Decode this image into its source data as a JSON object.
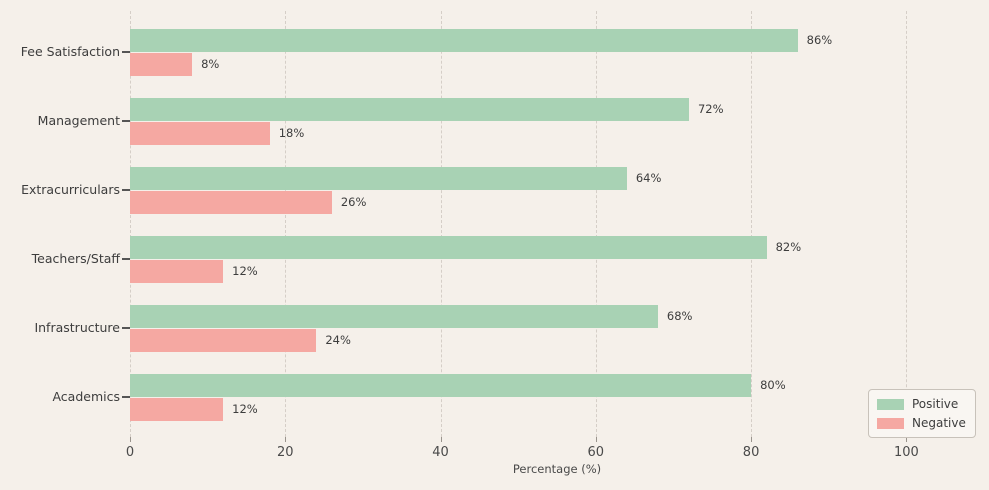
{
  "chart_data": {
    "type": "bar",
    "orientation": "horizontal",
    "title": "",
    "categories": [
      "Fee Satisfaction",
      "Management",
      "Extracurriculars",
      "Teachers/Staff",
      "Infrastructure",
      "Academics"
    ],
    "series": [
      {
        "name": "Positive",
        "color": "#a8d2b4",
        "values": [
          86,
          72,
          64,
          82,
          68,
          80
        ]
      },
      {
        "name": "Negative",
        "color": "#f5a8a2",
        "values": [
          8,
          18,
          26,
          12,
          24,
          12
        ]
      }
    ],
    "value_labels": {
      "Positive": [
        "86%",
        "72%",
        "64%",
        "82%",
        "68%",
        "80%"
      ],
      "Negative": [
        "8%",
        "18%",
        "26%",
        "12%",
        "24%",
        "12%"
      ]
    },
    "xlabel": "Percentage (%)",
    "x_ticks": [
      0,
      20,
      40,
      60,
      80,
      100
    ],
    "xlim": [
      0,
      110
    ],
    "grid": true,
    "grid_style": "dashed-vertical",
    "legend_position": "lower-right",
    "colors": {
      "background": "#f5f0ea",
      "grid": "#d5cec7",
      "text": "#3d3d3d",
      "tick_text": "#4a4a4a"
    }
  }
}
